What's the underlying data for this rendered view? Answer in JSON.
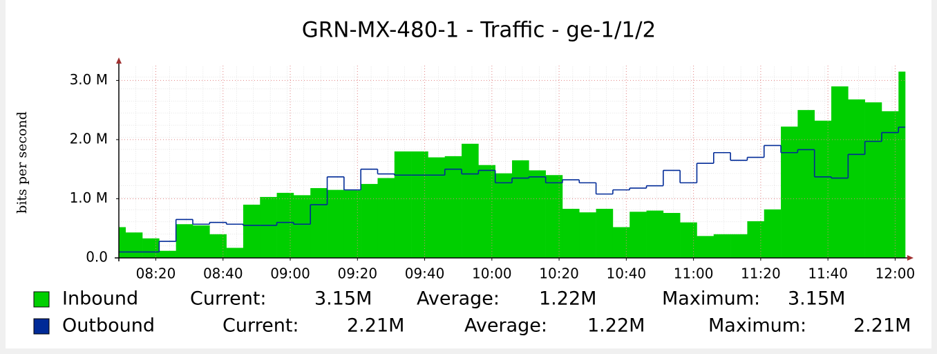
{
  "chart_data": {
    "type": "step-area",
    "title": "GRN-MX-480-1 - Traffic - ge-1/1/2",
    "y_label": "bits per second",
    "x": [
      489,
      491,
      496,
      501,
      506,
      511,
      516,
      521,
      526,
      531,
      536,
      541,
      546,
      551,
      556,
      561,
      566,
      571,
      576,
      581,
      586,
      591,
      596,
      601,
      606,
      611,
      616,
      621,
      626,
      631,
      636,
      641,
      646,
      651,
      656,
      661,
      666,
      671,
      676,
      681,
      686,
      691,
      696,
      701,
      706,
      711,
      716,
      721
    ],
    "xlim": [
      489,
      723
    ],
    "xticks": [
      {
        "value": 500,
        "label": "08:20"
      },
      {
        "value": 520,
        "label": "08:40"
      },
      {
        "value": 540,
        "label": "09:00"
      },
      {
        "value": 560,
        "label": "09:20"
      },
      {
        "value": 580,
        "label": "09:40"
      },
      {
        "value": 600,
        "label": "10:00"
      },
      {
        "value": 620,
        "label": "10:20"
      },
      {
        "value": 640,
        "label": "10:40"
      },
      {
        "value": 660,
        "label": "11:00"
      },
      {
        "value": 680,
        "label": "11:20"
      },
      {
        "value": 700,
        "label": "11:40"
      },
      {
        "value": 720,
        "label": "12:00"
      }
    ],
    "ylim": [
      0,
      3.25
    ],
    "yticks": [
      {
        "value": 0,
        "label": "0.0"
      },
      {
        "value": 1,
        "label": "1.0 M"
      },
      {
        "value": 2,
        "label": "2.0 M"
      },
      {
        "value": 3,
        "label": "3.0 M"
      }
    ],
    "grid": true,
    "series": [
      {
        "name": "Inbound",
        "color": "#00cf00",
        "style": "area",
        "values": [
          0.52,
          0.43,
          0.33,
          0.12,
          0.57,
          0.55,
          0.4,
          0.17,
          0.9,
          1.03,
          1.1,
          1.06,
          1.18,
          1.15,
          1.14,
          1.25,
          1.35,
          1.8,
          1.8,
          1.7,
          1.72,
          1.93,
          1.57,
          1.43,
          1.65,
          1.48,
          1.4,
          0.83,
          0.77,
          0.83,
          0.52,
          0.78,
          0.8,
          0.76,
          0.6,
          0.37,
          0.4,
          0.4,
          0.62,
          0.82,
          2.22,
          2.5,
          2.32,
          2.9,
          2.68,
          2.63,
          2.48,
          3.15
        ],
        "stats": [
          {
            "label": "Current:",
            "value": "3.15M"
          },
          {
            "label": "Average:",
            "value": "1.22M"
          },
          {
            "label": "Maximum:",
            "value": "3.15M"
          }
        ]
      },
      {
        "name": "Outbound",
        "color": "#002a97",
        "style": "line",
        "values": [
          0.1,
          0.1,
          0.1,
          0.28,
          0.65,
          0.57,
          0.6,
          0.57,
          0.55,
          0.55,
          0.6,
          0.57,
          0.9,
          1.37,
          1.15,
          1.5,
          1.42,
          1.4,
          1.4,
          1.4,
          1.5,
          1.42,
          1.48,
          1.27,
          1.35,
          1.37,
          1.27,
          1.32,
          1.27,
          1.08,
          1.15,
          1.18,
          1.22,
          1.48,
          1.27,
          1.6,
          1.78,
          1.65,
          1.7,
          1.9,
          1.78,
          1.83,
          1.37,
          1.35,
          1.75,
          1.97,
          2.12,
          2.21
        ],
        "stats": [
          {
            "label": "Current:",
            "value": "2.21M"
          },
          {
            "label": "Average:",
            "value": "1.22M"
          },
          {
            "label": "Maximum:",
            "value": "2.21M"
          }
        ]
      }
    ]
  }
}
